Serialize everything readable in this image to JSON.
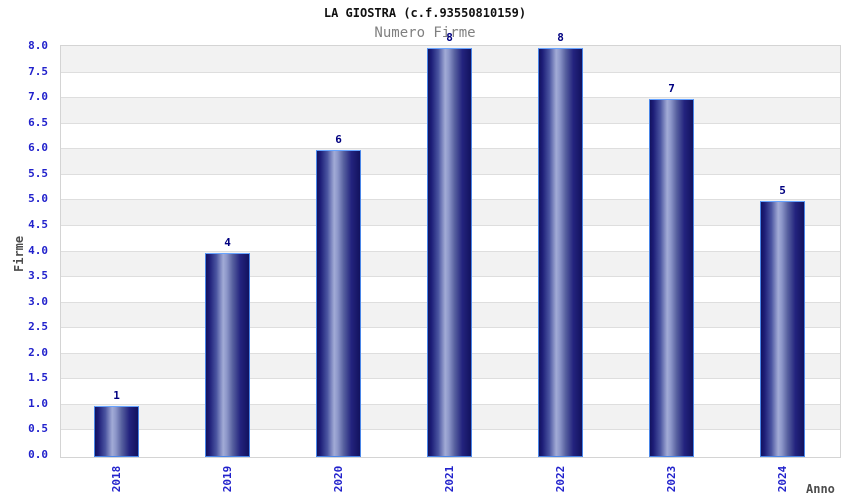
{
  "chart_data": {
    "type": "bar",
    "title": "LA GIOSTRA (c.f.93550810159)",
    "subtitle": "Numero Firme",
    "xlabel": "Anno",
    "ylabel": "Firme",
    "categories": [
      "2018",
      "2019",
      "2020",
      "2021",
      "2022",
      "2023",
      "2024"
    ],
    "values": [
      1,
      4,
      6,
      8,
      8,
      7,
      5
    ],
    "ylim": [
      0,
      8
    ],
    "ytick_step": 0.5,
    "grid": "horizontal gridlines with alternating bands",
    "legend": "none",
    "colors": {
      "bar_dark": "#13135f",
      "bar_light": "#a2abd6",
      "bar_border": "#4a86e8",
      "value_label": "#000080",
      "tick_label": "#2222cc",
      "axis_title": "#4d4d4d",
      "title_color": "#111111",
      "subtitle_color": "#808080",
      "band_gray": "#f2f2f2",
      "band_white": "#ffffff",
      "gridline": "#dedede"
    }
  }
}
